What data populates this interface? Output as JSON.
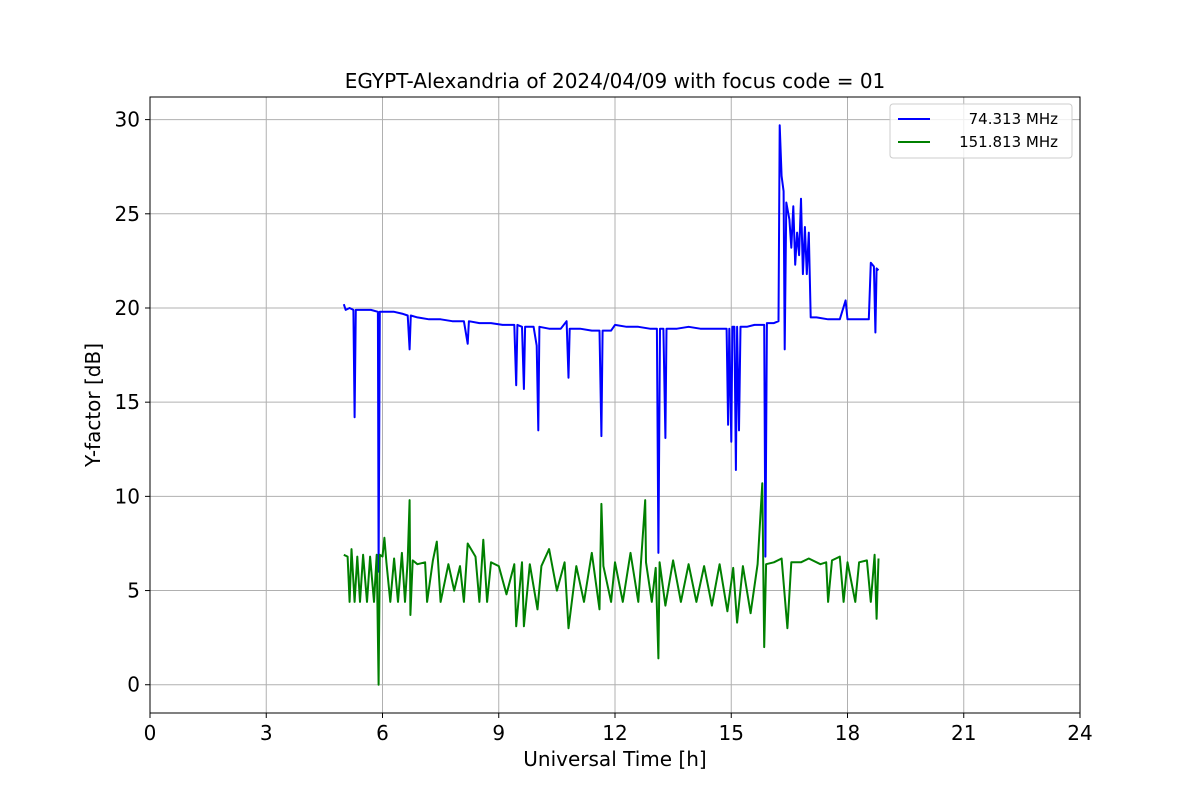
{
  "chart_data": {
    "type": "line",
    "title": "EGYPT-Alexandria of 2024/04/09 with focus code = 01",
    "xlabel": "Universal Time [h]",
    "ylabel": "Y-factor [dB]",
    "xlim": [
      0,
      24
    ],
    "ylim": [
      -1.5,
      31.2
    ],
    "xticks": [
      0,
      3,
      6,
      9,
      12,
      15,
      18,
      21,
      24
    ],
    "yticks": [
      0,
      5,
      10,
      15,
      20,
      25,
      30
    ],
    "xtick_labels": [
      "0",
      "3",
      "6",
      "9",
      "12",
      "15",
      "18",
      "21",
      "24"
    ],
    "ytick_labels": [
      "0",
      "5",
      "10",
      "15",
      "20",
      "25",
      "30"
    ],
    "grid": true,
    "legend_position": "top-right",
    "series": [
      {
        "name": "74.313 MHz",
        "color": "#0000ff",
        "points": [
          [
            5.0,
            20.2
          ],
          [
            5.05,
            19.9
          ],
          [
            5.15,
            20.0
          ],
          [
            5.25,
            19.9
          ],
          [
            5.28,
            14.2
          ],
          [
            5.31,
            19.9
          ],
          [
            5.5,
            19.9
          ],
          [
            5.7,
            19.9
          ],
          [
            5.88,
            19.8
          ],
          [
            5.9,
            6.0
          ],
          [
            5.93,
            19.8
          ],
          [
            6.1,
            19.8
          ],
          [
            6.3,
            19.8
          ],
          [
            6.5,
            19.7
          ],
          [
            6.65,
            19.6
          ],
          [
            6.7,
            17.8
          ],
          [
            6.73,
            19.6
          ],
          [
            6.9,
            19.5
          ],
          [
            7.2,
            19.4
          ],
          [
            7.5,
            19.4
          ],
          [
            7.8,
            19.3
          ],
          [
            8.1,
            19.3
          ],
          [
            8.2,
            18.1
          ],
          [
            8.23,
            19.3
          ],
          [
            8.5,
            19.2
          ],
          [
            8.8,
            19.2
          ],
          [
            9.1,
            19.1
          ],
          [
            9.4,
            19.1
          ],
          [
            9.45,
            15.9
          ],
          [
            9.48,
            19.1
          ],
          [
            9.6,
            19.0
          ],
          [
            9.65,
            15.7
          ],
          [
            9.68,
            19.0
          ],
          [
            9.9,
            19.0
          ],
          [
            9.98,
            18.0
          ],
          [
            10.02,
            13.5
          ],
          [
            10.05,
            19.0
          ],
          [
            10.3,
            18.9
          ],
          [
            10.6,
            18.9
          ],
          [
            10.75,
            19.3
          ],
          [
            10.8,
            16.3
          ],
          [
            10.83,
            18.9
          ],
          [
            11.1,
            18.9
          ],
          [
            11.4,
            18.8
          ],
          [
            11.6,
            18.8
          ],
          [
            11.65,
            13.2
          ],
          [
            11.68,
            18.8
          ],
          [
            11.9,
            18.8
          ],
          [
            12.0,
            19.1
          ],
          [
            12.3,
            19.0
          ],
          [
            12.6,
            19.0
          ],
          [
            12.9,
            18.9
          ],
          [
            13.08,
            18.9
          ],
          [
            13.12,
            7.0
          ],
          [
            13.16,
            18.9
          ],
          [
            13.25,
            18.9
          ],
          [
            13.3,
            13.1
          ],
          [
            13.33,
            18.9
          ],
          [
            13.6,
            18.9
          ],
          [
            13.9,
            19.0
          ],
          [
            14.2,
            18.9
          ],
          [
            14.5,
            18.9
          ],
          [
            14.8,
            18.9
          ],
          [
            14.88,
            18.9
          ],
          [
            14.92,
            13.8
          ],
          [
            14.95,
            18.9
          ],
          [
            15.0,
            12.9
          ],
          [
            15.03,
            19.0
          ],
          [
            15.08,
            19.0
          ],
          [
            15.12,
            11.4
          ],
          [
            15.15,
            19.0
          ],
          [
            15.2,
            13.5
          ],
          [
            15.24,
            19.0
          ],
          [
            15.4,
            19.0
          ],
          [
            15.6,
            19.1
          ],
          [
            15.85,
            19.1
          ],
          [
            15.88,
            6.8
          ],
          [
            15.92,
            19.2
          ],
          [
            16.1,
            19.2
          ],
          [
            16.22,
            19.3
          ],
          [
            16.25,
            29.7
          ],
          [
            16.3,
            27.0
          ],
          [
            16.35,
            26.2
          ],
          [
            16.38,
            17.8
          ],
          [
            16.42,
            25.6
          ],
          [
            16.5,
            24.7
          ],
          [
            16.55,
            23.2
          ],
          [
            16.6,
            25.4
          ],
          [
            16.65,
            22.3
          ],
          [
            16.7,
            24.0
          ],
          [
            16.75,
            22.8
          ],
          [
            16.8,
            25.8
          ],
          [
            16.85,
            21.8
          ],
          [
            16.9,
            24.3
          ],
          [
            16.95,
            21.8
          ],
          [
            17.0,
            24.0
          ],
          [
            17.05,
            19.5
          ],
          [
            17.2,
            19.5
          ],
          [
            17.5,
            19.4
          ],
          [
            17.8,
            19.4
          ],
          [
            17.95,
            20.4
          ],
          [
            18.0,
            19.4
          ],
          [
            18.3,
            19.4
          ],
          [
            18.55,
            19.4
          ],
          [
            18.6,
            22.4
          ],
          [
            18.68,
            22.2
          ],
          [
            18.72,
            18.7
          ],
          [
            18.75,
            22.1
          ],
          [
            18.8,
            22.0
          ]
        ]
      },
      {
        "name": "151.813 MHz",
        "color": "#008000",
        "points": [
          [
            5.0,
            6.9
          ],
          [
            5.1,
            6.8
          ],
          [
            5.15,
            4.4
          ],
          [
            5.2,
            7.2
          ],
          [
            5.28,
            4.4
          ],
          [
            5.35,
            6.8
          ],
          [
            5.42,
            4.4
          ],
          [
            5.5,
            6.9
          ],
          [
            5.6,
            4.4
          ],
          [
            5.68,
            6.8
          ],
          [
            5.78,
            4.4
          ],
          [
            5.85,
            6.9
          ],
          [
            5.9,
            0.0
          ],
          [
            5.93,
            6.9
          ],
          [
            6.0,
            6.8
          ],
          [
            6.05,
            7.8
          ],
          [
            6.1,
            6.5
          ],
          [
            6.2,
            4.4
          ],
          [
            6.3,
            6.7
          ],
          [
            6.4,
            4.4
          ],
          [
            6.5,
            7.0
          ],
          [
            6.58,
            4.4
          ],
          [
            6.65,
            6.6
          ],
          [
            6.7,
            9.8
          ],
          [
            6.72,
            3.7
          ],
          [
            6.78,
            6.6
          ],
          [
            6.9,
            6.4
          ],
          [
            7.1,
            6.5
          ],
          [
            7.15,
            4.4
          ],
          [
            7.3,
            6.6
          ],
          [
            7.4,
            7.6
          ],
          [
            7.5,
            4.4
          ],
          [
            7.7,
            6.4
          ],
          [
            7.85,
            5.0
          ],
          [
            8.0,
            6.3
          ],
          [
            8.1,
            4.4
          ],
          [
            8.2,
            7.5
          ],
          [
            8.4,
            6.8
          ],
          [
            8.5,
            4.4
          ],
          [
            8.6,
            7.7
          ],
          [
            8.7,
            4.4
          ],
          [
            8.8,
            6.5
          ],
          [
            9.0,
            6.3
          ],
          [
            9.2,
            4.8
          ],
          [
            9.4,
            6.4
          ],
          [
            9.45,
            3.1
          ],
          [
            9.6,
            6.5
          ],
          [
            9.65,
            3.1
          ],
          [
            9.8,
            6.4
          ],
          [
            10.0,
            4.0
          ],
          [
            10.1,
            6.3
          ],
          [
            10.3,
            7.2
          ],
          [
            10.5,
            5.0
          ],
          [
            10.7,
            6.5
          ],
          [
            10.8,
            3.0
          ],
          [
            11.0,
            6.3
          ],
          [
            11.2,
            4.4
          ],
          [
            11.4,
            7.0
          ],
          [
            11.6,
            4.0
          ],
          [
            11.65,
            9.6
          ],
          [
            11.7,
            6.3
          ],
          [
            11.9,
            4.4
          ],
          [
            12.0,
            6.5
          ],
          [
            12.2,
            4.4
          ],
          [
            12.4,
            7.0
          ],
          [
            12.6,
            4.4
          ],
          [
            12.78,
            9.8
          ],
          [
            12.8,
            6.5
          ],
          [
            12.95,
            4.4
          ],
          [
            13.05,
            6.2
          ],
          [
            13.12,
            1.4
          ],
          [
            13.15,
            6.5
          ],
          [
            13.3,
            4.2
          ],
          [
            13.5,
            6.6
          ],
          [
            13.7,
            4.4
          ],
          [
            13.9,
            6.4
          ],
          [
            14.1,
            4.4
          ],
          [
            14.3,
            6.3
          ],
          [
            14.5,
            4.2
          ],
          [
            14.7,
            6.4
          ],
          [
            14.9,
            3.9
          ],
          [
            15.05,
            6.2
          ],
          [
            15.15,
            3.3
          ],
          [
            15.3,
            6.3
          ],
          [
            15.5,
            3.8
          ],
          [
            15.68,
            6.4
          ],
          [
            15.8,
            10.7
          ],
          [
            15.85,
            2.0
          ],
          [
            15.9,
            6.4
          ],
          [
            16.1,
            6.5
          ],
          [
            16.3,
            6.7
          ],
          [
            16.45,
            3.0
          ],
          [
            16.55,
            6.5
          ],
          [
            16.8,
            6.5
          ],
          [
            17.0,
            6.7
          ],
          [
            17.3,
            6.4
          ],
          [
            17.45,
            6.5
          ],
          [
            17.5,
            4.4
          ],
          [
            17.6,
            6.6
          ],
          [
            17.8,
            6.8
          ],
          [
            17.9,
            4.4
          ],
          [
            18.0,
            6.5
          ],
          [
            18.2,
            4.4
          ],
          [
            18.3,
            6.5
          ],
          [
            18.5,
            6.6
          ],
          [
            18.6,
            4.4
          ],
          [
            18.7,
            6.9
          ],
          [
            18.75,
            3.5
          ],
          [
            18.8,
            6.7
          ]
        ]
      }
    ]
  }
}
